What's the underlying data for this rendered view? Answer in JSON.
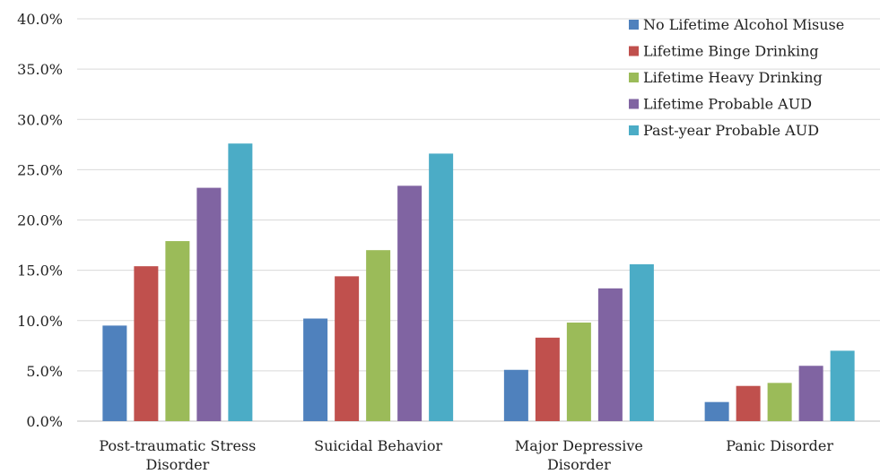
{
  "chart_data": {
    "type": "bar",
    "title": "",
    "xlabel": "",
    "ylabel": "",
    "ylim": [
      0,
      0.4
    ],
    "yticks": [
      "0.0%",
      "5.0%",
      "10.0%",
      "15.0%",
      "20.0%",
      "25.0%",
      "30.0%",
      "35.0%",
      "40.0%"
    ],
    "grid": true,
    "legend_position": "top-right",
    "categories": [
      [
        "Post-traumatic Stress",
        "Disorder"
      ],
      [
        "Suicidal Behavior"
      ],
      [
        "Major Depressive",
        "Disorder"
      ],
      [
        "Panic Disorder"
      ]
    ],
    "series": [
      {
        "name": "No Lifetime Alcohol Misuse",
        "color": "#4F81BD",
        "values": [
          0.095,
          0.102,
          0.051,
          0.019
        ]
      },
      {
        "name": "Lifetime Binge Drinking",
        "color": "#C0504D",
        "values": [
          0.154,
          0.144,
          0.083,
          0.035
        ]
      },
      {
        "name": "Lifetime Heavy Drinking",
        "color": "#9BBB59",
        "values": [
          0.179,
          0.17,
          0.098,
          0.038
        ]
      },
      {
        "name": "Lifetime Probable AUD",
        "color": "#8064A2",
        "values": [
          0.232,
          0.234,
          0.132,
          0.055
        ]
      },
      {
        "name": "Past-year Probable AUD",
        "color": "#4BACC6",
        "values": [
          0.276,
          0.266,
          0.156,
          0.07
        ]
      }
    ]
  }
}
